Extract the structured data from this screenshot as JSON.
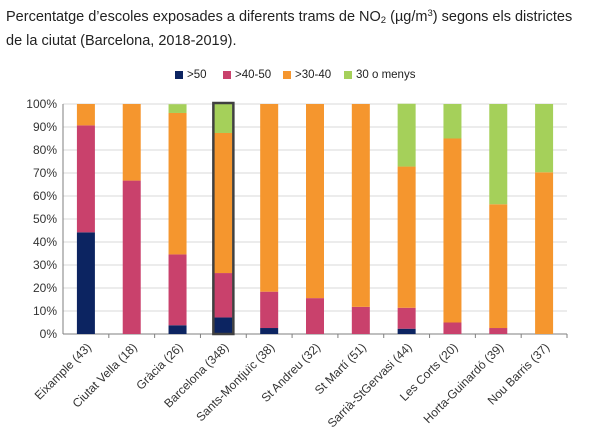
{
  "title": {
    "part1": "Percentatge d’escoles exposades a diferents trams de NO",
    "sub": "2",
    "part2": " (µg/m",
    "sup": "3",
    "part3": ") segons els districtes de la ciutat (Barcelona, 2018-2019)."
  },
  "colors": {
    "s50": "#0c2461",
    "s4050": "#c9416c",
    "s3040": "#f5962e",
    "s30less": "#a5d05a",
    "grid": "#d9d9d9",
    "axis": "#7f7f7f",
    "highlight": "#404040"
  },
  "chart_data": {
    "type": "bar",
    "stacked": true,
    "title": "Percentatge d’escoles exposades a diferents trams de NO2 (µg/m3) segons els districtes de la ciutat (Barcelona, 2018-2019).",
    "ylabel": "",
    "xlabel": "",
    "ylim": [
      0,
      100
    ],
    "yticks": [
      "0%",
      "10%",
      "20%",
      "30%",
      "40%",
      "50%",
      "60%",
      "70%",
      "80%",
      "90%",
      "100%"
    ],
    "grid": true,
    "legend_position": "top",
    "highlight_category": "Barcelona (348)",
    "categories": [
      "Eixample (43)",
      "Ciutat Vella (18)",
      "Gràcia (26)",
      "Barcelona (348)",
      "Sants-Montjuïc (38)",
      "St Andreu (32)",
      "St Martí (51)",
      "Sarrià-StGervasi (44)",
      "Les Corts (20)",
      "Horta-Guinardó (39)",
      "Nou Barris (37)"
    ],
    "series": [
      {
        "name": ">50",
        "color_key": "s50",
        "values": [
          44.2,
          0,
          3.8,
          7.2,
          2.6,
          0,
          0,
          2.3,
          0,
          0,
          0
        ]
      },
      {
        "name": ">40-50",
        "color_key": "s4050",
        "values": [
          46.5,
          66.7,
          30.8,
          19.3,
          15.8,
          15.6,
          11.8,
          9.1,
          5.0,
          2.6,
          0
        ]
      },
      {
        "name": ">30-40",
        "color_key": "s3040",
        "values": [
          9.3,
          33.3,
          61.5,
          60.9,
          81.6,
          84.4,
          88.2,
          61.4,
          80.0,
          53.8,
          70.3
        ]
      },
      {
        "name": "30 o menys",
        "color_key": "s30less",
        "values": [
          0,
          0,
          3.8,
          12.6,
          0,
          0,
          0,
          27.3,
          15.0,
          43.6,
          29.7
        ]
      }
    ]
  }
}
